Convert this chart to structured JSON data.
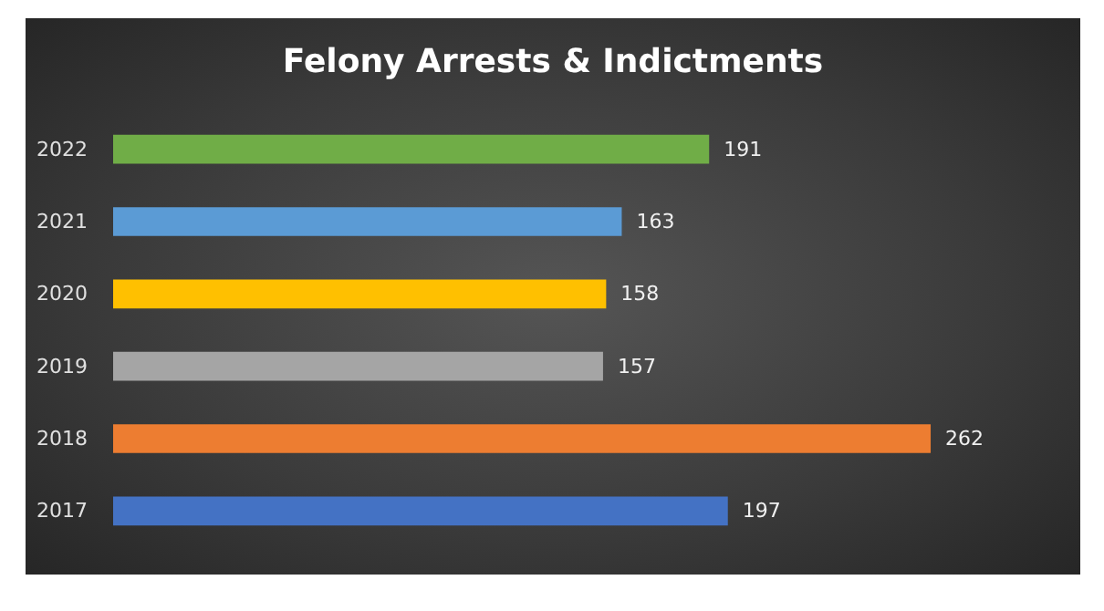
{
  "chart_data": {
    "type": "bar",
    "title": "Felony Arrests & Indictments",
    "orientation": "horizontal",
    "categories": [
      "2022",
      "2021",
      "2020",
      "2019",
      "2018",
      "2017"
    ],
    "values": [
      191,
      163,
      158,
      157,
      262,
      197
    ],
    "colors": [
      "#70ad47",
      "#5b9bd5",
      "#ffc000",
      "#a5a5a5",
      "#ed7d31",
      "#4472c4"
    ],
    "data_labels": true
  }
}
